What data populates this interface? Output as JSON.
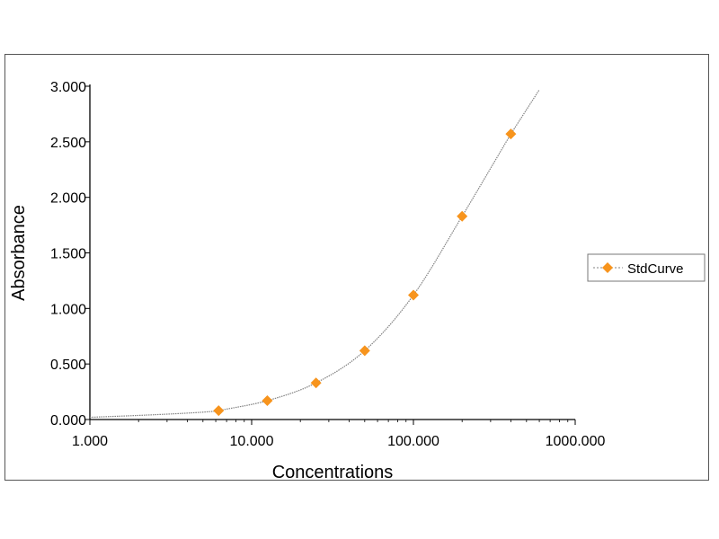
{
  "chart_data": {
    "type": "scatter",
    "xlabel": "Concentrations",
    "ylabel": "Absorbance",
    "xscale": "log",
    "xlim": [
      1,
      1000
    ],
    "ylim": [
      0,
      3
    ],
    "grid": false,
    "legend_position": "right",
    "x_tick_labels": [
      "1.000",
      "10.000",
      "100.000",
      "1000.000"
    ],
    "x_tick_values": [
      1,
      10,
      100,
      1000
    ],
    "y_tick_labels": [
      "0.000",
      "0.500",
      "1.000",
      "1.500",
      "2.000",
      "2.500",
      "3.000"
    ],
    "y_tick_values": [
      0,
      0.5,
      1,
      1.5,
      2,
      2.5,
      3
    ],
    "series": [
      {
        "name": "StdCurve",
        "x": [
          6.25,
          12.5,
          25,
          50,
          100,
          200,
          400
        ],
        "y": [
          0.08,
          0.17,
          0.33,
          0.62,
          1.12,
          1.83,
          2.57
        ],
        "marker": "diamond",
        "marker_color": "#F7941D",
        "line_color": "#808080",
        "curve_x_range": [
          1,
          600
        ]
      }
    ]
  }
}
